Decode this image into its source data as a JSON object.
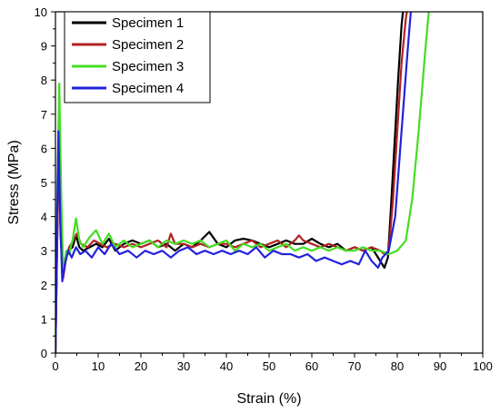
{
  "chart_data": {
    "type": "line",
    "title": "",
    "xlabel": "Strain (%)",
    "ylabel": "Stress (MPa)",
    "xlim": [
      0,
      100
    ],
    "ylim": [
      0,
      10
    ],
    "xticks": [
      0,
      10,
      20,
      30,
      40,
      50,
      60,
      70,
      80,
      90,
      100
    ],
    "yticks": [
      0,
      1,
      2,
      3,
      4,
      5,
      6,
      7,
      8,
      9,
      10
    ],
    "grid": false,
    "legend_position": "top-left",
    "series": [
      {
        "name": "Specimen 1",
        "color": "#000000",
        "points": [
          [
            0,
            0
          ],
          [
            0.4,
            3.2
          ],
          [
            0.8,
            6.3
          ],
          [
            1.2,
            3.5
          ],
          [
            1.7,
            2.3
          ],
          [
            2.3,
            2.8
          ],
          [
            3,
            3.0
          ],
          [
            4,
            3.1
          ],
          [
            4.8,
            3.45
          ],
          [
            5.6,
            3.1
          ],
          [
            6.5,
            3.0
          ],
          [
            8,
            3.1
          ],
          [
            9.5,
            3.2
          ],
          [
            11,
            3.1
          ],
          [
            12.5,
            3.35
          ],
          [
            14,
            3.0
          ],
          [
            16,
            3.2
          ],
          [
            18,
            3.3
          ],
          [
            20,
            3.2
          ],
          [
            22,
            3.3
          ],
          [
            24,
            3.1
          ],
          [
            26,
            3.2
          ],
          [
            28,
            3.0
          ],
          [
            30,
            3.2
          ],
          [
            32,
            3.1
          ],
          [
            34,
            3.3
          ],
          [
            36,
            3.55
          ],
          [
            38,
            3.2
          ],
          [
            40,
            3.1
          ],
          [
            42,
            3.3
          ],
          [
            44,
            3.35
          ],
          [
            46,
            3.3
          ],
          [
            48,
            3.2
          ],
          [
            50,
            3.1
          ],
          [
            52,
            3.2
          ],
          [
            54,
            3.3
          ],
          [
            56,
            3.2
          ],
          [
            58,
            3.2
          ],
          [
            60,
            3.35
          ],
          [
            62,
            3.2
          ],
          [
            64,
            3.1
          ],
          [
            66,
            3.2
          ],
          [
            68,
            3.0
          ],
          [
            70,
            3.1
          ],
          [
            72,
            3.0
          ],
          [
            74,
            3.1
          ],
          [
            76,
            2.7
          ],
          [
            77,
            2.5
          ],
          [
            77.8,
            2.8
          ],
          [
            78.5,
            4.2
          ],
          [
            79.3,
            6.0
          ],
          [
            80.2,
            8.0
          ],
          [
            81,
            9.6
          ],
          [
            81.5,
            10.2
          ]
        ]
      },
      {
        "name": "Specimen 2",
        "color": "#b22222",
        "points": [
          [
            0,
            0
          ],
          [
            0.4,
            3.3
          ],
          [
            0.8,
            6.2
          ],
          [
            1.3,
            3.3
          ],
          [
            1.8,
            2.2
          ],
          [
            2.5,
            2.8
          ],
          [
            3.2,
            3.1
          ],
          [
            4.2,
            3.3
          ],
          [
            5,
            3.5
          ],
          [
            6,
            3.2
          ],
          [
            7.5,
            3.1
          ],
          [
            9,
            3.3
          ],
          [
            10.5,
            3.2
          ],
          [
            12,
            3.1
          ],
          [
            14,
            3.2
          ],
          [
            16,
            3.1
          ],
          [
            18,
            3.2
          ],
          [
            20,
            3.1
          ],
          [
            22,
            3.2
          ],
          [
            24,
            3.3
          ],
          [
            26,
            3.1
          ],
          [
            27,
            3.5
          ],
          [
            28,
            3.2
          ],
          [
            30,
            3.2
          ],
          [
            32,
            3.1
          ],
          [
            34,
            3.2
          ],
          [
            36,
            3.1
          ],
          [
            38,
            3.2
          ],
          [
            40,
            3.2
          ],
          [
            42,
            3.1
          ],
          [
            44,
            3.2
          ],
          [
            46,
            3.3
          ],
          [
            48,
            3.1
          ],
          [
            50,
            3.2
          ],
          [
            52,
            3.3
          ],
          [
            54,
            3.1
          ],
          [
            56,
            3.3
          ],
          [
            57,
            3.45
          ],
          [
            58,
            3.3
          ],
          [
            60,
            3.2
          ],
          [
            62,
            3.1
          ],
          [
            64,
            3.2
          ],
          [
            66,
            3.1
          ],
          [
            68,
            3.0
          ],
          [
            70,
            3.1
          ],
          [
            72,
            3.0
          ],
          [
            74,
            3.1
          ],
          [
            76,
            3.0
          ],
          [
            77,
            2.9
          ],
          [
            78,
            3.0
          ],
          [
            79,
            4.5
          ],
          [
            80,
            6.5
          ],
          [
            81,
            8.5
          ],
          [
            82,
            9.8
          ],
          [
            82.5,
            10.2
          ]
        ]
      },
      {
        "name": "Specimen 3",
        "color": "#44dd22",
        "points": [
          [
            0,
            0
          ],
          [
            0.4,
            4.5
          ],
          [
            0.9,
            7.9
          ],
          [
            1.3,
            5.0
          ],
          [
            1.8,
            2.3
          ],
          [
            2.5,
            3.0
          ],
          [
            3.2,
            2.9
          ],
          [
            4,
            3.3
          ],
          [
            4.8,
            3.95
          ],
          [
            5.6,
            3.3
          ],
          [
            6.5,
            3.1
          ],
          [
            8,
            3.4
          ],
          [
            9.5,
            3.6
          ],
          [
            11,
            3.2
          ],
          [
            12.5,
            3.5
          ],
          [
            14,
            3.1
          ],
          [
            16,
            3.3
          ],
          [
            18,
            3.1
          ],
          [
            20,
            3.2
          ],
          [
            22,
            3.3
          ],
          [
            24,
            3.1
          ],
          [
            26,
            3.3
          ],
          [
            28,
            3.2
          ],
          [
            30,
            3.3
          ],
          [
            32,
            3.2
          ],
          [
            34,
            3.3
          ],
          [
            36,
            3.1
          ],
          [
            38,
            3.2
          ],
          [
            40,
            3.3
          ],
          [
            42,
            3.0
          ],
          [
            44,
            3.2
          ],
          [
            46,
            3.1
          ],
          [
            48,
            3.2
          ],
          [
            50,
            3.0
          ],
          [
            52,
            3.1
          ],
          [
            54,
            3.2
          ],
          [
            56,
            3.0
          ],
          [
            58,
            3.1
          ],
          [
            60,
            3.0
          ],
          [
            62,
            3.1
          ],
          [
            64,
            3.0
          ],
          [
            66,
            3.1
          ],
          [
            68,
            3.0
          ],
          [
            70,
            3.0
          ],
          [
            72,
            3.1
          ],
          [
            74,
            3.0
          ],
          [
            76,
            3.0
          ],
          [
            78,
            2.9
          ],
          [
            80,
            3.0
          ],
          [
            82,
            3.3
          ],
          [
            83.5,
            4.5
          ],
          [
            85,
            6.5
          ],
          [
            86.5,
            8.8
          ],
          [
            87.5,
            10.2
          ]
        ]
      },
      {
        "name": "Specimen 4",
        "color": "#2222dd",
        "points": [
          [
            0,
            0
          ],
          [
            0.3,
            3.0
          ],
          [
            0.7,
            6.5
          ],
          [
            1.1,
            4.0
          ],
          [
            1.6,
            2.1
          ],
          [
            2.2,
            2.6
          ],
          [
            3,
            3.0
          ],
          [
            3.8,
            2.8
          ],
          [
            4.8,
            3.1
          ],
          [
            5.8,
            2.9
          ],
          [
            7,
            3.0
          ],
          [
            8.5,
            2.8
          ],
          [
            10,
            3.1
          ],
          [
            11.5,
            2.9
          ],
          [
            13,
            3.2
          ],
          [
            15,
            2.9
          ],
          [
            17,
            3.0
          ],
          [
            19,
            2.8
          ],
          [
            21,
            3.0
          ],
          [
            23,
            2.9
          ],
          [
            25,
            3.0
          ],
          [
            27,
            2.8
          ],
          [
            29,
            3.0
          ],
          [
            31,
            3.1
          ],
          [
            33,
            2.9
          ],
          [
            35,
            3.0
          ],
          [
            37,
            2.9
          ],
          [
            39,
            3.0
          ],
          [
            41,
            2.9
          ],
          [
            43,
            3.0
          ],
          [
            45,
            2.9
          ],
          [
            47,
            3.1
          ],
          [
            49,
            2.8
          ],
          [
            51,
            3.0
          ],
          [
            53,
            2.9
          ],
          [
            55,
            2.9
          ],
          [
            57,
            2.8
          ],
          [
            59,
            2.9
          ],
          [
            61,
            2.7
          ],
          [
            63,
            2.8
          ],
          [
            65,
            2.7
          ],
          [
            67,
            2.6
          ],
          [
            69,
            2.7
          ],
          [
            71,
            2.6
          ],
          [
            72.5,
            3.0
          ],
          [
            74,
            2.7
          ],
          [
            75.5,
            2.5
          ],
          [
            76.5,
            2.8
          ],
          [
            78,
            3.0
          ],
          [
            79.5,
            4.0
          ],
          [
            81,
            6.5
          ],
          [
            82.5,
            9.0
          ],
          [
            83.3,
            10.2
          ]
        ]
      }
    ]
  }
}
